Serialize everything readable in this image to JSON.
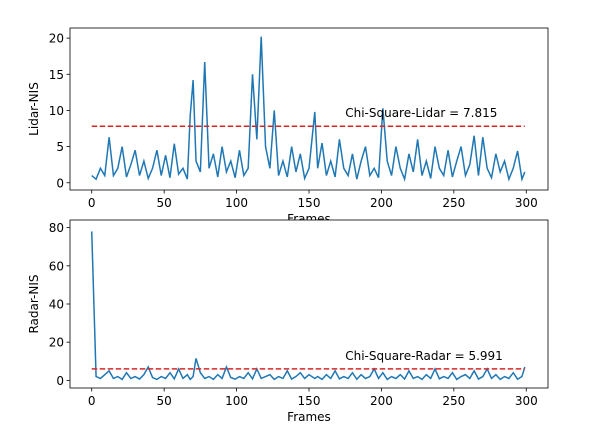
{
  "chart_data": [
    {
      "type": "line",
      "xlabel": "Frames",
      "ylabel": "Lidar-NIS",
      "color": "#1f77b4",
      "x": [
        0,
        3,
        6,
        9,
        12,
        15,
        18,
        21,
        24,
        27,
        30,
        33,
        36,
        39,
        42,
        45,
        48,
        51,
        54,
        57,
        60,
        63,
        66,
        68,
        70,
        72,
        75,
        78,
        81,
        84,
        87,
        90,
        93,
        96,
        99,
        102,
        105,
        108,
        111,
        114,
        117,
        120,
        123,
        126,
        129,
        132,
        135,
        138,
        141,
        144,
        147,
        150,
        154,
        156,
        159,
        162,
        165,
        168,
        171,
        174,
        177,
        180,
        183,
        186,
        189,
        192,
        195,
        198,
        201,
        204,
        207,
        210,
        213,
        216,
        219,
        222,
        225,
        228,
        231,
        234,
        237,
        240,
        243,
        246,
        249,
        252,
        255,
        258,
        261,
        264,
        267,
        270,
        273,
        276,
        279,
        282,
        285,
        288,
        291,
        294,
        297,
        299
      ],
      "values": [
        1,
        0.5,
        2,
        1,
        6.3,
        1,
        2,
        5,
        0.8,
        2.5,
        4.5,
        1,
        3,
        0.6,
        2,
        4.5,
        1,
        3.8,
        0.7,
        5.4,
        1.2,
        2,
        0.5,
        9.3,
        14.2,
        3,
        1.5,
        16.7,
        2,
        4,
        0.8,
        5,
        1.5,
        3,
        0.7,
        4.5,
        1,
        2,
        15,
        6,
        20.2,
        5,
        2,
        10,
        1,
        3,
        0.8,
        5,
        1.5,
        4,
        0.6,
        2,
        9.8,
        2,
        5.5,
        1,
        3,
        0.8,
        6,
        2,
        1,
        4,
        0.5,
        3,
        5,
        1,
        2,
        0.7,
        10.3,
        3,
        1,
        5,
        2,
        0.5,
        4,
        1.5,
        6,
        1,
        3,
        0.6,
        5,
        2,
        1,
        4.5,
        0.8,
        3,
        5,
        1,
        2.5,
        6.5,
        1,
        6.3,
        2,
        0.7,
        4,
        1.5,
        3,
        0.5,
        2,
        4.4,
        0.5,
        1.5
      ],
      "threshold": 7.815,
      "threshold_color": "#d62728",
      "annotation": "Chi-Square-Lidar = 7.815",
      "xlim": [
        -15,
        315
      ],
      "ylim": [
        -1,
        21.4
      ],
      "xticks": [
        0,
        50,
        100,
        150,
        200,
        250,
        300
      ],
      "yticks": [
        0,
        5,
        10,
        15,
        20
      ]
    },
    {
      "type": "line",
      "xlabel": "Frames",
      "ylabel": "Radar-NIS",
      "color": "#1f77b4",
      "x": [
        0,
        3,
        6,
        9,
        12,
        15,
        18,
        21,
        24,
        27,
        30,
        33,
        36,
        39,
        42,
        45,
        48,
        51,
        54,
        57,
        60,
        63,
        66,
        68,
        70,
        72,
        75,
        78,
        81,
        84,
        87,
        90,
        93,
        96,
        99,
        102,
        105,
        108,
        111,
        114,
        117,
        120,
        123,
        126,
        129,
        132,
        135,
        138,
        141,
        144,
        147,
        150,
        154,
        156,
        159,
        162,
        165,
        168,
        171,
        174,
        177,
        180,
        183,
        186,
        189,
        192,
        195,
        198,
        201,
        204,
        207,
        210,
        213,
        216,
        219,
        222,
        225,
        228,
        231,
        234,
        237,
        240,
        243,
        246,
        249,
        252,
        255,
        258,
        261,
        264,
        267,
        270,
        273,
        276,
        279,
        282,
        285,
        288,
        291,
        294,
        297,
        299
      ],
      "values": [
        78,
        2,
        1,
        3,
        5,
        1,
        2,
        0.5,
        4,
        1,
        2,
        0.7,
        3,
        7,
        1.5,
        0.5,
        2,
        1,
        4,
        0.8,
        6,
        1,
        3,
        0.5,
        2,
        11.5,
        4,
        1,
        2,
        0.5,
        3,
        1,
        7,
        1.5,
        0.6,
        2,
        1,
        4,
        0.8,
        6,
        1,
        2,
        3,
        0.5,
        2,
        1,
        5,
        0.7,
        2,
        4,
        1,
        3,
        1,
        2,
        0.5,
        3,
        1,
        5,
        0.8,
        2,
        1,
        4,
        0.6,
        3,
        1,
        2,
        6,
        1,
        4,
        0.5,
        2,
        1,
        3,
        0.7,
        5,
        1,
        2,
        0.5,
        3,
        1,
        6,
        0.8,
        2,
        1,
        4,
        0.5,
        2,
        3,
        1,
        5,
        0.7,
        2,
        6,
        1,
        3,
        0.5,
        2,
        1,
        4,
        0.6,
        2,
        7
      ],
      "threshold": 5.991,
      "threshold_color": "#d62728",
      "annotation": "Chi-Square-Radar = 5.991",
      "xlim": [
        -15,
        315
      ],
      "ylim": [
        -4,
        84
      ],
      "xticks": [
        0,
        50,
        100,
        150,
        200,
        250,
        300
      ],
      "yticks": [
        0,
        20,
        40,
        60,
        80
      ]
    }
  ]
}
